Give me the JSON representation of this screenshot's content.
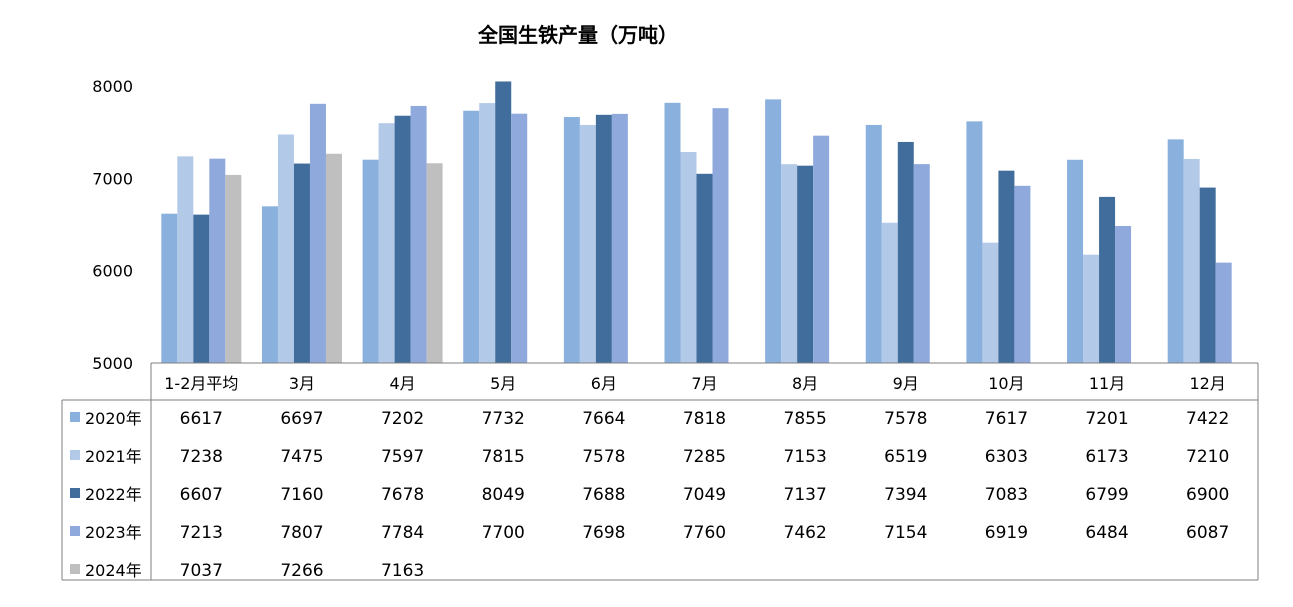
{
  "chart_data": {
    "type": "bar",
    "title": "全国生铁产量（万吨）",
    "categories": [
      "1-2月平均",
      "3月",
      "4月",
      "5月",
      "6月",
      "7月",
      "8月",
      "9月",
      "10月",
      "11月",
      "12月"
    ],
    "y_ticks": [
      "8000",
      "7000",
      "6000",
      "5000"
    ],
    "ylim": [
      5000,
      8000
    ],
    "grid": false,
    "legend": "data-table-left",
    "series": [
      {
        "name": "2020年",
        "color": "#8AB0DE",
        "values": [
          6617,
          6697,
          7202,
          7732,
          7664,
          7818,
          7855,
          7578,
          7617,
          7201,
          7422
        ]
      },
      {
        "name": "2021年",
        "color": "#B3C9E8",
        "values": [
          7238,
          7475,
          7597,
          7815,
          7578,
          7285,
          7153,
          6519,
          6303,
          6173,
          7210
        ]
      },
      {
        "name": "2022年",
        "color": "#406D9B",
        "values": [
          6607,
          7160,
          7678,
          8049,
          7688,
          7049,
          7137,
          7394,
          7083,
          6799,
          6900
        ]
      },
      {
        "name": "2023年",
        "color": "#8FA9DD",
        "values": [
          7213,
          7807,
          7784,
          7700,
          7698,
          7760,
          7462,
          7154,
          6919,
          6484,
          6087
        ]
      },
      {
        "name": "2024年",
        "color": "#BFBFBF",
        "values": [
          7037,
          7266,
          7163,
          null,
          null,
          null,
          null,
          null,
          null,
          null,
          null
        ]
      }
    ]
  }
}
